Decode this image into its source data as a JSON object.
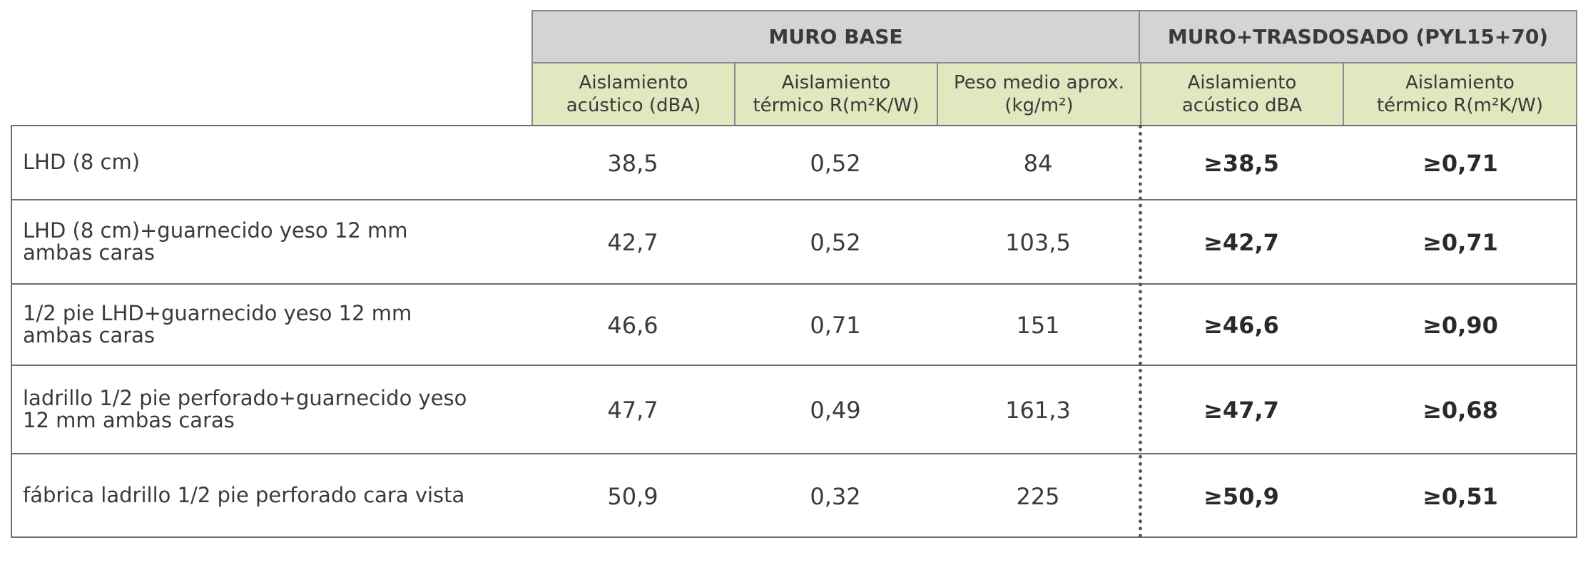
{
  "groups": {
    "base": "MURO BASE",
    "trasdosado": "MURO+TRASDOSADO (PYL15+70)"
  },
  "columns": [
    "Aislamiento\nacústico (dBA)",
    "Aislamiento\ntérmico  R(m²K/W)",
    "Peso medio aprox.\n(kg/m²)",
    "Aislamiento\nacústico dBA",
    "Aislamiento\ntérmico  R(m²K/W)"
  ],
  "rows": [
    {
      "label": "LHD (8 cm)",
      "acustico": "38,5",
      "termico": "0,52",
      "peso": "84",
      "tras_acustico": "≥38,5",
      "tras_termico": "≥0,71"
    },
    {
      "label": "LHD (8 cm)+guarnecido yeso 12 mm\nambas caras",
      "acustico": "42,7",
      "termico": "0,52",
      "peso": "103,5",
      "tras_acustico": "≥42,7",
      "tras_termico": "≥0,71"
    },
    {
      "label": "1/2 pie LHD+guarnecido yeso 12 mm\nambas caras",
      "acustico": "46,6",
      "termico": "0,71",
      "peso": "151",
      "tras_acustico": "≥46,6",
      "tras_termico": "≥0,90"
    },
    {
      "label": "ladrillo 1/2 pie perforado+guarnecido yeso\n12 mm ambas caras",
      "acustico": "47,7",
      "termico": "0,49",
      "peso": "161,3",
      "tras_acustico": "≥47,7",
      "tras_termico": "≥0,68"
    },
    {
      "label": "fábrica ladrillo 1/2 pie perforado cara vista",
      "acustico": "50,9",
      "termico": "0,32",
      "peso": "225",
      "tras_acustico": "≥50,9",
      "tras_termico": "≥0,51"
    }
  ],
  "colors": {
    "group_header_bg": "#d4d4d6",
    "column_header_bg": "#e1e7bf",
    "border": "#6e6e6e",
    "text": "#3a3a3a"
  }
}
